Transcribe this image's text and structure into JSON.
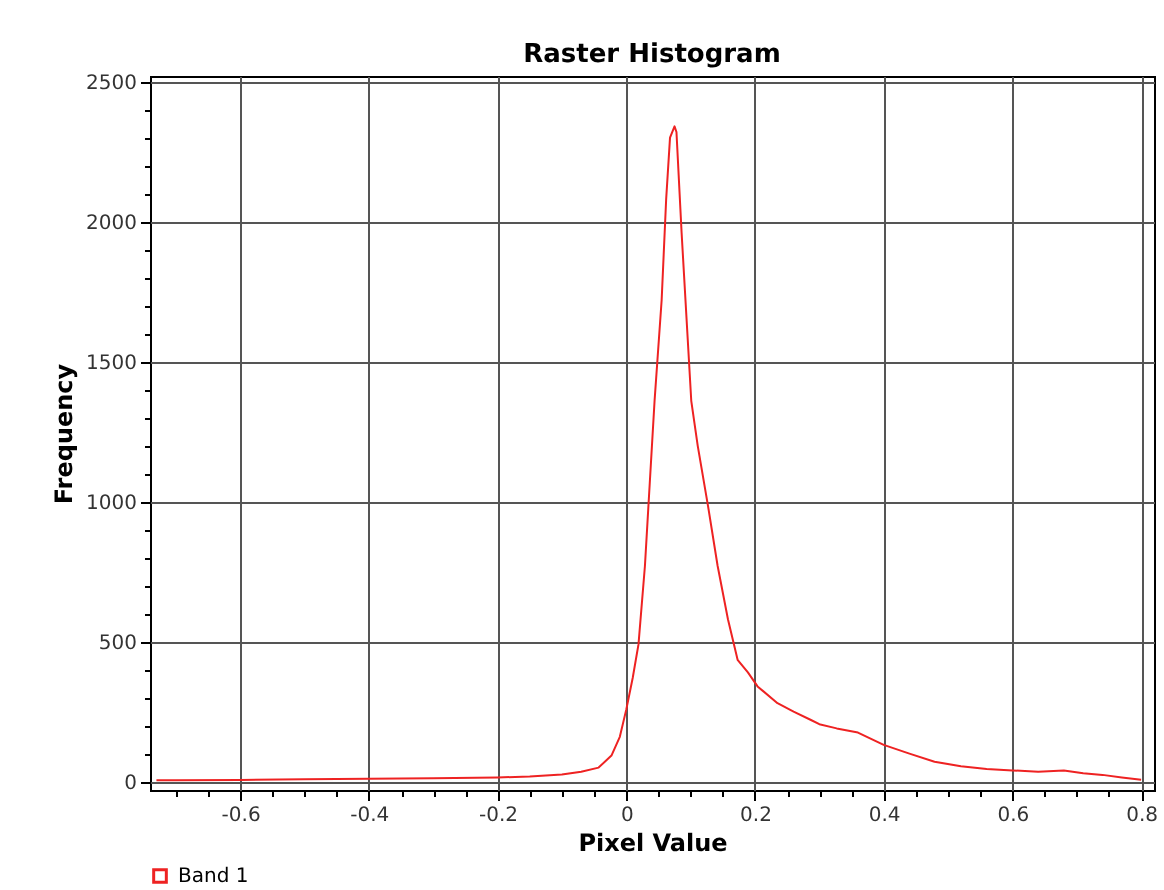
{
  "chart_data": {
    "type": "line",
    "title": "Raster Histogram",
    "xlabel": "Pixel Value",
    "ylabel": "Frequency",
    "series": [
      {
        "name": "Band 1",
        "color": "#ee2222",
        "x": [
          -0.73,
          -0.7,
          -0.6,
          -0.5,
          -0.4,
          -0.3,
          -0.2,
          -0.15,
          -0.1,
          -0.07,
          -0.043,
          -0.023,
          -0.01,
          0,
          0.01,
          0.019,
          0.029,
          0.044,
          0.055,
          0.062,
          0.068,
          0.075,
          0.078,
          0.086,
          0.101,
          0.111,
          0.127,
          0.142,
          0.158,
          0.173,
          0.189,
          0.204,
          0.235,
          0.26,
          0.287,
          0.3,
          0.327,
          0.36,
          0.4,
          0.44,
          0.479,
          0.52,
          0.56,
          0.6,
          0.64,
          0.68,
          0.71,
          0.74,
          0.77,
          0.8
        ],
        "values": [
          5,
          5,
          6,
          8,
          10,
          12,
          15,
          18,
          25,
          35,
          50,
          93,
          160,
          257,
          370,
          490,
          770,
          1360,
          1720,
          2080,
          2300,
          2340,
          2320,
          1960,
          1360,
          1200,
          985,
          770,
          580,
          435,
          390,
          340,
          280,
          250,
          220,
          205,
          190,
          175,
          131,
          100,
          71,
          55,
          45,
          40,
          35,
          40,
          30,
          24,
          15,
          7
        ]
      }
    ],
    "xlim": [
      -0.74,
      0.82
    ],
    "ylim": [
      -30,
      2520
    ],
    "xticks": [
      {
        "value": -0.7,
        "label": null
      },
      {
        "value": -0.65,
        "label": null
      },
      -0.6,
      {
        "value": -0.55,
        "label": null
      },
      {
        "value": -0.5,
        "label": null
      },
      {
        "value": -0.45,
        "label": null
      },
      -0.4,
      {
        "value": -0.35,
        "label": null
      },
      {
        "value": -0.3,
        "label": null
      },
      {
        "value": -0.25,
        "label": null
      },
      -0.2,
      {
        "value": -0.15,
        "label": null
      },
      {
        "value": -0.1,
        "label": null
      },
      {
        "value": -0.05,
        "label": null
      },
      0,
      {
        "value": 0.05,
        "label": null
      },
      {
        "value": 0.1,
        "label": null
      },
      {
        "value": 0.15,
        "label": null
      },
      0.2,
      {
        "value": 0.25,
        "label": null
      },
      {
        "value": 0.3,
        "label": null
      },
      {
        "value": 0.35,
        "label": null
      },
      0.4,
      {
        "value": 0.45,
        "label": null
      },
      {
        "value": 0.5,
        "label": null
      },
      {
        "value": 0.55,
        "label": null
      },
      0.6,
      {
        "value": 0.65,
        "label": null
      },
      {
        "value": 0.7,
        "label": null
      },
      {
        "value": 0.75,
        "label": null
      },
      0.8
    ],
    "yticks": [
      0,
      {
        "value": 100,
        "label": null
      },
      {
        "value": 200,
        "label": null
      },
      {
        "value": 300,
        "label": null
      },
      {
        "value": 400,
        "label": null
      },
      500,
      {
        "value": 600,
        "label": null
      },
      {
        "value": 700,
        "label": null
      },
      {
        "value": 800,
        "label": null
      },
      {
        "value": 900,
        "label": null
      },
      1000,
      {
        "value": 1100,
        "label": null
      },
      {
        "value": 1200,
        "label": null
      },
      {
        "value": 1300,
        "label": null
      },
      {
        "value": 1400,
        "label": null
      },
      1500,
      {
        "value": 1600,
        "label": null
      },
      {
        "value": 1700,
        "label": null
      },
      {
        "value": 1800,
        "label": null
      },
      {
        "value": 1900,
        "label": null
      },
      2000,
      {
        "value": 2100,
        "label": null
      },
      {
        "value": 2200,
        "label": null
      },
      {
        "value": 2300,
        "label": null
      },
      {
        "value": 2400,
        "label": null
      },
      2500
    ],
    "grid": true,
    "legend": "bottom",
    "marker": "none",
    "line_style": "solid"
  }
}
